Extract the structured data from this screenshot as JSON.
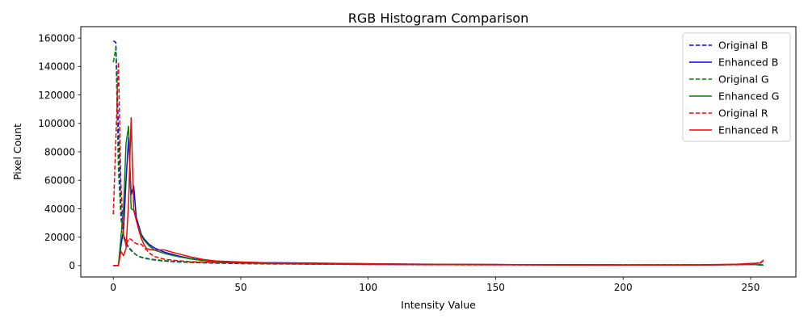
{
  "chart_data": {
    "type": "line",
    "title": "RGB Histogram Comparison",
    "xlabel": "Intensity Value",
    "ylabel": "Pixel Count",
    "xlim": [
      -12.75,
      267.75
    ],
    "ylim": [
      -8000,
      168000
    ],
    "xticks": [
      0,
      50,
      100,
      150,
      200,
      250
    ],
    "yticks": [
      0,
      20000,
      40000,
      60000,
      80000,
      100000,
      120000,
      140000,
      160000
    ],
    "grid": false,
    "legend_position": "upper right",
    "series": [
      {
        "name": "Original B",
        "color": "#0000ff",
        "dash": true,
        "points": [
          [
            0,
            158000
          ],
          [
            1,
            157000
          ],
          [
            2,
            95000
          ],
          [
            3,
            40000
          ],
          [
            4,
            22000
          ],
          [
            5,
            16000
          ],
          [
            6,
            13000
          ],
          [
            7,
            11000
          ],
          [
            8,
            9000
          ],
          [
            9,
            7500
          ],
          [
            10,
            6500
          ],
          [
            12,
            5200
          ],
          [
            15,
            4200
          ],
          [
            20,
            3200
          ],
          [
            25,
            2600
          ],
          [
            30,
            2200
          ],
          [
            40,
            1700
          ],
          [
            50,
            1400
          ],
          [
            60,
            1200
          ],
          [
            80,
            1000
          ],
          [
            100,
            800
          ],
          [
            120,
            700
          ],
          [
            150,
            600
          ],
          [
            180,
            500
          ],
          [
            200,
            500
          ],
          [
            230,
            500
          ],
          [
            245,
            700
          ],
          [
            250,
            900
          ],
          [
            255,
            300
          ]
        ]
      },
      {
        "name": "Enhanced B",
        "color": "#0000ff",
        "dash": false,
        "points": [
          [
            0,
            0
          ],
          [
            1,
            0
          ],
          [
            2,
            0
          ],
          [
            3,
            14000
          ],
          [
            4,
            25000
          ],
          [
            5,
            60000
          ],
          [
            6,
            90000
          ],
          [
            7,
            50000
          ],
          [
            8,
            56000
          ],
          [
            9,
            34000
          ],
          [
            10,
            28000
          ],
          [
            11,
            22000
          ],
          [
            12,
            19000
          ],
          [
            14,
            15000
          ],
          [
            16,
            12500
          ],
          [
            20,
            9500
          ],
          [
            25,
            7000
          ],
          [
            30,
            5000
          ],
          [
            35,
            3800
          ],
          [
            40,
            3000
          ],
          [
            50,
            2400
          ],
          [
            60,
            2000
          ],
          [
            65,
            2000
          ],
          [
            80,
            1700
          ],
          [
            100,
            1300
          ],
          [
            120,
            1000
          ],
          [
            150,
            700
          ],
          [
            180,
            500
          ],
          [
            200,
            400
          ],
          [
            230,
            400
          ],
          [
            245,
            700
          ],
          [
            250,
            900
          ],
          [
            255,
            400
          ]
        ]
      },
      {
        "name": "Original G",
        "color": "#008000",
        "dash": true,
        "points": [
          [
            0,
            143000
          ],
          [
            1,
            153000
          ],
          [
            2,
            68000
          ],
          [
            3,
            33000
          ],
          [
            4,
            20000
          ],
          [
            5,
            15000
          ],
          [
            6,
            12500
          ],
          [
            7,
            10500
          ],
          [
            8,
            9000
          ],
          [
            9,
            7500
          ],
          [
            10,
            6500
          ],
          [
            12,
            5500
          ],
          [
            15,
            4500
          ],
          [
            20,
            3500
          ],
          [
            25,
            2900
          ],
          [
            30,
            2500
          ],
          [
            40,
            1900
          ],
          [
            50,
            1600
          ],
          [
            60,
            1400
          ],
          [
            80,
            1100
          ],
          [
            100,
            900
          ],
          [
            120,
            800
          ],
          [
            150,
            700
          ],
          [
            180,
            600
          ],
          [
            200,
            600
          ],
          [
            230,
            600
          ],
          [
            245,
            800
          ],
          [
            250,
            1000
          ],
          [
            255,
            500
          ]
        ]
      },
      {
        "name": "Enhanced G",
        "color": "#008000",
        "dash": false,
        "points": [
          [
            0,
            0
          ],
          [
            1,
            0
          ],
          [
            2,
            0
          ],
          [
            3,
            20000
          ],
          [
            4,
            40000
          ],
          [
            5,
            86000
          ],
          [
            6,
            98000
          ],
          [
            7,
            40000
          ],
          [
            8,
            39000
          ],
          [
            9,
            32000
          ],
          [
            10,
            26000
          ],
          [
            11,
            21000
          ],
          [
            12,
            18000
          ],
          [
            14,
            14000
          ],
          [
            16,
            11000
          ],
          [
            20,
            8500
          ],
          [
            25,
            6500
          ],
          [
            30,
            4800
          ],
          [
            35,
            3600
          ],
          [
            40,
            2800
          ],
          [
            50,
            2200
          ],
          [
            60,
            1800
          ],
          [
            80,
            1500
          ],
          [
            100,
            1200
          ],
          [
            120,
            900
          ],
          [
            150,
            700
          ],
          [
            180,
            500
          ],
          [
            200,
            400
          ],
          [
            230,
            400
          ],
          [
            245,
            700
          ],
          [
            250,
            900
          ],
          [
            255,
            400
          ]
        ]
      },
      {
        "name": "Original R",
        "color": "#ff0000",
        "dash": true,
        "points": [
          [
            0,
            36000
          ],
          [
            1,
            89000
          ],
          [
            2,
            143000
          ],
          [
            3,
            57000
          ],
          [
            4,
            22000
          ],
          [
            5,
            14000
          ],
          [
            6,
            19000
          ],
          [
            7,
            18500
          ],
          [
            8,
            16500
          ],
          [
            9,
            15500
          ],
          [
            10,
            15000
          ],
          [
            11,
            15000
          ],
          [
            12,
            13000
          ],
          [
            14,
            9000
          ],
          [
            16,
            6500
          ],
          [
            20,
            4500
          ],
          [
            25,
            3500
          ],
          [
            30,
            2800
          ],
          [
            40,
            2200
          ],
          [
            50,
            1800
          ],
          [
            60,
            1500
          ],
          [
            80,
            1100
          ],
          [
            100,
            800
          ],
          [
            120,
            600
          ],
          [
            150,
            500
          ],
          [
            180,
            400
          ],
          [
            200,
            400
          ],
          [
            230,
            500
          ],
          [
            245,
            600
          ],
          [
            250,
            800
          ],
          [
            255,
            3000
          ]
        ]
      },
      {
        "name": "Enhanced R",
        "color": "#ff0000",
        "dash": false,
        "points": [
          [
            0,
            0
          ],
          [
            1,
            0
          ],
          [
            2,
            0
          ],
          [
            3,
            10000
          ],
          [
            4,
            7000
          ],
          [
            5,
            12000
          ],
          [
            6,
            45000
          ],
          [
            7,
            104000
          ],
          [
            8,
            40000
          ],
          [
            9,
            32000
          ],
          [
            10,
            25000
          ],
          [
            11,
            19000
          ],
          [
            12,
            15000
          ],
          [
            13,
            12000
          ],
          [
            15,
            11000
          ],
          [
            20,
            11000
          ],
          [
            22,
            10000
          ],
          [
            25,
            8500
          ],
          [
            30,
            6200
          ],
          [
            35,
            4400
          ],
          [
            40,
            3300
          ],
          [
            50,
            2500
          ],
          [
            60,
            1900
          ],
          [
            80,
            1500
          ],
          [
            100,
            1200
          ],
          [
            120,
            900
          ],
          [
            150,
            700
          ],
          [
            180,
            600
          ],
          [
            200,
            500
          ],
          [
            230,
            500
          ],
          [
            245,
            1000
          ],
          [
            250,
            1500
          ],
          [
            254,
            1800
          ],
          [
            255,
            4000
          ]
        ]
      }
    ]
  }
}
